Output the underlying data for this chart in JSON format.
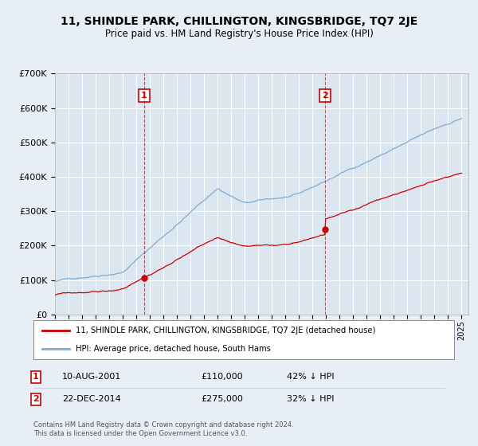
{
  "title": "11, SHINDLE PARK, CHILLINGTON, KINGSBRIDGE, TQ7 2JE",
  "subtitle": "Price paid vs. HM Land Registry's House Price Index (HPI)",
  "hpi_color": "#7aadd4",
  "price_color": "#cc0000",
  "background_color": "#e8eef5",
  "plot_bg_color": "#dce6f0",
  "sale1_date": "10-AUG-2001",
  "sale1_price": 110000,
  "sale1_label": "42% ↓ HPI",
  "sale2_date": "22-DEC-2014",
  "sale2_price": 275000,
  "sale2_label": "32% ↓ HPI",
  "legend_line1": "11, SHINDLE PARK, CHILLINGTON, KINGSBRIDGE, TQ7 2JE (detached house)",
  "legend_line2": "HPI: Average price, detached house, South Hams",
  "footer": "Contains HM Land Registry data © Crown copyright and database right 2024.\nThis data is licensed under the Open Government Licence v3.0.",
  "ylim": [
    0,
    700000
  ],
  "yticks": [
    0,
    100000,
    200000,
    300000,
    400000,
    500000,
    600000,
    700000
  ],
  "xmin": 1995,
  "xmax": 2025.5
}
